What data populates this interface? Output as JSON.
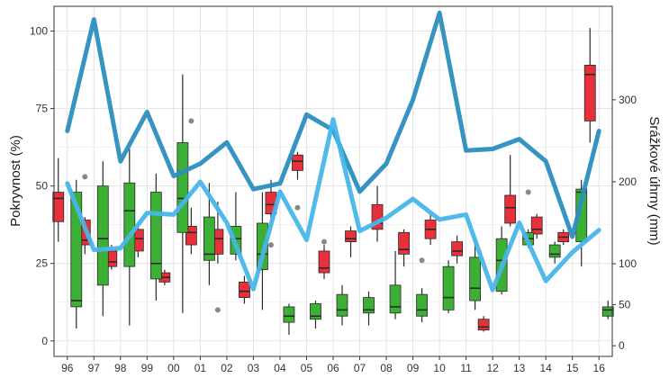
{
  "chart_data": {
    "type": "boxplot",
    "title": "",
    "xlabel": "",
    "ylabel_left": "Pokryvnost (%)",
    "ylabel_right": "Srážkové úhrny (mm)",
    "ylim_left": [
      -5,
      108
    ],
    "ylim_right": [
      -13,
      414
    ],
    "yticks_left": [
      0,
      25,
      50,
      75,
      100
    ],
    "yticks_right": [
      0,
      50,
      100,
      200,
      300
    ],
    "categories": [
      "96",
      "97",
      "98",
      "99",
      "00",
      "01",
      "02",
      "03",
      "04",
      "05",
      "06",
      "07",
      "08",
      "09",
      "10",
      "11",
      "12",
      "13",
      "14",
      "15",
      "16"
    ],
    "grid": true,
    "colors": {
      "red_box": "#e8303a",
      "green_box": "#3bb034",
      "dark_line": "#2b8ec0",
      "light_line": "#47b6ea",
      "outlier": "#888888"
    },
    "series": [
      {
        "box_color": "red",
        "boxes": [
          {
            "x": "96",
            "min": 32,
            "q1": 38.5,
            "median": 46,
            "q3": 48,
            "max": 59,
            "outliers": []
          },
          {
            "x": "97",
            "min": 28,
            "q1": 31,
            "median": 32.5,
            "q3": 39,
            "max": 40,
            "outliers": [
              53
            ]
          },
          {
            "x": "98",
            "min": 23,
            "q1": 24,
            "median": 25.5,
            "q3": 29,
            "max": 31,
            "outliers": []
          },
          {
            "x": "99",
            "min": 27,
            "q1": 29,
            "median": 33,
            "q3": 36,
            "max": 37,
            "outliers": []
          },
          {
            "x": "00",
            "min": 18,
            "q1": 19,
            "median": 20.5,
            "q3": 22,
            "max": 23,
            "outliers": []
          },
          {
            "x": "01",
            "min": 28,
            "q1": 31,
            "median": 35,
            "q3": 37,
            "max": 43,
            "outliers": [
              71
            ]
          },
          {
            "x": "02",
            "min": 25,
            "q1": 28,
            "median": 33,
            "q3": 36,
            "max": 45,
            "outliers": [
              10
            ]
          },
          {
            "x": "03",
            "min": 12,
            "q1": 14,
            "median": 16,
            "q3": 19,
            "max": 21,
            "outliers": []
          },
          {
            "x": "04",
            "min": 37,
            "q1": 41,
            "median": 44,
            "q3": 48,
            "max": 52,
            "outliers": [
              31
            ]
          },
          {
            "x": "05",
            "min": 52,
            "q1": 55,
            "median": 58,
            "q3": 60,
            "max": 61,
            "outliers": [
              43
            ]
          },
          {
            "x": "06",
            "min": 20,
            "q1": 22,
            "median": 23.5,
            "q3": 29,
            "max": 31,
            "outliers": [
              32
            ]
          },
          {
            "x": "07",
            "min": 27,
            "q1": 32,
            "median": 33,
            "q3": 35.5,
            "max": 37,
            "outliers": []
          },
          {
            "x": "08",
            "min": 32,
            "q1": 36,
            "median": 38,
            "q3": 44,
            "max": 50,
            "outliers": []
          },
          {
            "x": "09",
            "min": 24,
            "q1": 28,
            "median": 29.5,
            "q3": 35,
            "max": 36,
            "outliers": []
          },
          {
            "x": "10",
            "min": 31,
            "q1": 33,
            "median": 36,
            "q3": 39,
            "max": 41,
            "outliers": []
          },
          {
            "x": "11",
            "min": 25,
            "q1": 27.5,
            "median": 29,
            "q3": 32,
            "max": 34,
            "outliers": []
          },
          {
            "x": "12",
            "min": 3,
            "q1": 3.5,
            "median": 4.5,
            "q3": 7,
            "max": 8,
            "outliers": []
          },
          {
            "x": "13",
            "min": 37,
            "q1": 38,
            "median": 43,
            "q3": 47,
            "max": 60,
            "outliers": []
          },
          {
            "x": "14",
            "min": 33,
            "q1": 34.5,
            "median": 36,
            "q3": 40,
            "max": 41,
            "outliers": []
          },
          {
            "x": "15",
            "min": 31,
            "q1": 32,
            "median": 33.5,
            "q3": 35,
            "max": 36,
            "outliers": []
          },
          {
            "x": "16",
            "min": 64,
            "q1": 71,
            "median": 86,
            "q3": 89,
            "max": 101,
            "outliers": []
          }
        ]
      },
      {
        "box_color": "green",
        "boxes": [
          {
            "x": "96",
            "min": 4,
            "q1": 11,
            "median": 13,
            "q3": 48,
            "max": 52,
            "outliers": []
          },
          {
            "x": "97",
            "min": 8,
            "q1": 18,
            "median": 33,
            "q3": 50,
            "max": 58,
            "outliers": []
          },
          {
            "x": "98",
            "min": 5,
            "q1": 24,
            "median": 42,
            "q3": 51,
            "max": 62,
            "outliers": []
          },
          {
            "x": "99",
            "min": 13,
            "q1": 20,
            "median": 25,
            "q3": 48,
            "max": 54,
            "outliers": []
          },
          {
            "x": "00",
            "min": 9,
            "q1": 35,
            "median": 46,
            "q3": 64,
            "max": 86,
            "outliers": []
          },
          {
            "x": "01",
            "min": 18,
            "q1": 26,
            "median": 28,
            "q3": 40,
            "max": 51,
            "outliers": []
          },
          {
            "x": "02",
            "min": 26,
            "q1": 28,
            "median": 33,
            "q3": 37,
            "max": 48,
            "outliers": []
          },
          {
            "x": "03",
            "min": 10,
            "q1": 23,
            "median": 28,
            "q3": 38,
            "max": 48,
            "outliers": []
          },
          {
            "x": "04",
            "min": 2,
            "q1": 6,
            "median": 8,
            "q3": 11,
            "max": 12,
            "outliers": []
          },
          {
            "x": "05",
            "min": 4,
            "q1": 7,
            "median": 8,
            "q3": 12,
            "max": 13,
            "outliers": []
          },
          {
            "x": "06",
            "min": 5,
            "q1": 8,
            "median": 10,
            "q3": 15,
            "max": 18,
            "outliers": []
          },
          {
            "x": "07",
            "min": 5,
            "q1": 9,
            "median": 10,
            "q3": 14,
            "max": 16,
            "outliers": []
          },
          {
            "x": "08",
            "min": 7,
            "q1": 9,
            "median": 11,
            "q3": 18,
            "max": 29,
            "outliers": []
          },
          {
            "x": "09",
            "min": 6,
            "q1": 8,
            "median": 10,
            "q3": 15,
            "max": 17,
            "outliers": [
              26
            ]
          },
          {
            "x": "10",
            "min": 9,
            "q1": 10,
            "median": 14,
            "q3": 24,
            "max": 26,
            "outliers": []
          },
          {
            "x": "11",
            "min": 10,
            "q1": 13,
            "median": 17,
            "q3": 27,
            "max": 33,
            "outliers": []
          },
          {
            "x": "12",
            "min": 15,
            "q1": 16,
            "median": 26,
            "q3": 33,
            "max": 37,
            "outliers": []
          },
          {
            "x": "13",
            "min": 30,
            "q1": 31,
            "median": 33,
            "q3": 35,
            "max": 36,
            "outliers": [
              48
            ]
          },
          {
            "x": "14",
            "min": 25,
            "q1": 27,
            "median": 28,
            "q3": 31,
            "max": 32,
            "outliers": []
          },
          {
            "x": "15",
            "min": 24,
            "q1": 32,
            "median": 48,
            "q3": 49,
            "max": 52,
            "outliers": []
          },
          {
            "x": "16",
            "min": 7,
            "q1": 8,
            "median": 10,
            "q3": 11,
            "max": 13,
            "outliers": []
          }
        ]
      }
    ],
    "lines": [
      {
        "axis": "right",
        "color": "dark",
        "values": [
          262,
          398,
          225,
          285,
          207,
          222,
          248,
          191,
          198,
          282,
          263,
          188,
          222,
          300,
          406,
          238,
          240,
          252,
          225,
          133,
          262
        ]
      },
      {
        "axis": "right",
        "color": "light",
        "values": [
          198,
          117,
          119,
          162,
          160,
          200,
          150,
          69,
          188,
          129,
          276,
          140,
          156,
          179,
          154,
          160,
          68,
          150,
          79,
          114,
          141
        ]
      }
    ]
  }
}
